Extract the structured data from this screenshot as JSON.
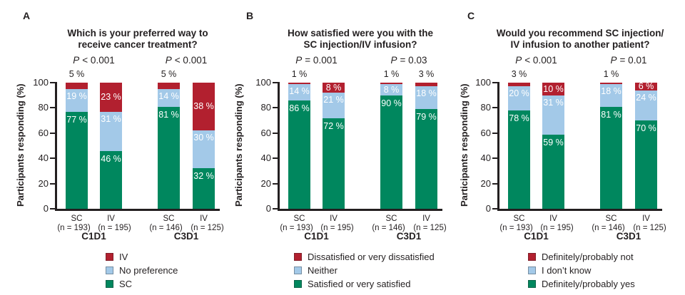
{
  "colors": {
    "green": "#00875E",
    "blue": "#A3C9E8",
    "red": "#B2202F",
    "text": "#231F20",
    "inbar_label": "#FFFFFF"
  },
  "chart_data": [
    {
      "type": "bar",
      "stacked": true,
      "panel_letter": "A",
      "title_lines": [
        "Which is your preferred way to",
        "receive cancer treatment?"
      ],
      "ylabel": "Participants responding (%)",
      "ylim": [
        0,
        100
      ],
      "yticks": [
        0,
        20,
        40,
        60,
        80,
        100
      ],
      "legend": [
        {
          "color_key": "red",
          "label": "IV"
        },
        {
          "color_key": "blue",
          "label": "No preference"
        },
        {
          "color_key": "green",
          "label": "SC"
        }
      ],
      "groups": [
        {
          "label": "C1D1",
          "p": {
            "symbol": "P",
            "comparison": "< 0.001"
          },
          "bars": [
            {
              "arm": "SC",
              "n_label": "(n = 193)",
              "segments": [
                {
                  "series": "SC",
                  "color_key": "green",
                  "value": 77,
                  "label": "77 %",
                  "label_position": "inside"
                },
                {
                  "series": "No preference",
                  "color_key": "blue",
                  "value": 19,
                  "label": "19 %",
                  "label_position": "inside"
                },
                {
                  "series": "IV",
                  "color_key": "red",
                  "value": 5,
                  "label": "5 %",
                  "label_position": "above"
                }
              ]
            },
            {
              "arm": "IV",
              "n_label": "(n = 195)",
              "segments": [
                {
                  "series": "SC",
                  "color_key": "green",
                  "value": 46,
                  "label": "46 %",
                  "label_position": "inside"
                },
                {
                  "series": "No preference",
                  "color_key": "blue",
                  "value": 31,
                  "label": "31 %",
                  "label_position": "inside"
                },
                {
                  "series": "IV",
                  "color_key": "red",
                  "value": 23,
                  "label": "23 %",
                  "label_position": "inside"
                }
              ]
            }
          ]
        },
        {
          "label": "C3D1",
          "p": {
            "symbol": "P",
            "comparison": "< 0.001"
          },
          "bars": [
            {
              "arm": "SC",
              "n_label": "(n = 146)",
              "segments": [
                {
                  "series": "SC",
                  "color_key": "green",
                  "value": 81,
                  "label": "81 %",
                  "label_position": "inside"
                },
                {
                  "series": "No preference",
                  "color_key": "blue",
                  "value": 14,
                  "label": "14 %",
                  "label_position": "inside"
                },
                {
                  "series": "IV",
                  "color_key": "red",
                  "value": 5,
                  "label": "5 %",
                  "label_position": "above"
                }
              ]
            },
            {
              "arm": "IV",
              "n_label": "(n = 125)",
              "segments": [
                {
                  "series": "SC",
                  "color_key": "green",
                  "value": 32,
                  "label": "32 %",
                  "label_position": "inside"
                },
                {
                  "series": "No preference",
                  "color_key": "blue",
                  "value": 30,
                  "label": "30 %",
                  "label_position": "inside"
                },
                {
                  "series": "IV",
                  "color_key": "red",
                  "value": 38,
                  "label": "38 %",
                  "label_position": "inside"
                }
              ]
            }
          ]
        }
      ]
    },
    {
      "type": "bar",
      "stacked": true,
      "panel_letter": "B",
      "title_lines": [
        "How satisfied were you with the",
        "SC injection/IV infusion?"
      ],
      "ylabel": "Participants responding (%)",
      "ylim": [
        0,
        100
      ],
      "yticks": [
        0,
        20,
        40,
        60,
        80,
        100
      ],
      "legend": [
        {
          "color_key": "red",
          "label": "Dissatisfied or very dissatisfied"
        },
        {
          "color_key": "blue",
          "label": "Neither"
        },
        {
          "color_key": "green",
          "label": "Satisfied or very satisfied"
        }
      ],
      "groups": [
        {
          "label": "C1D1",
          "p": {
            "symbol": "P",
            "comparison": "= 0.001"
          },
          "bars": [
            {
              "arm": "SC",
              "n_label": "(n = 193)",
              "segments": [
                {
                  "series": "Satisfied or very satisfied",
                  "color_key": "green",
                  "value": 86,
                  "label": "86 %",
                  "label_position": "inside"
                },
                {
                  "series": "Neither",
                  "color_key": "blue",
                  "value": 14,
                  "label": "14 %",
                  "label_position": "inside"
                },
                {
                  "series": "Dissatisfied or very dissatisfied",
                  "color_key": "red",
                  "value": 1,
                  "label": "1 %",
                  "label_position": "above"
                }
              ]
            },
            {
              "arm": "IV",
              "n_label": "(n = 195)",
              "segments": [
                {
                  "series": "Satisfied or very satisfied",
                  "color_key": "green",
                  "value": 72,
                  "label": "72 %",
                  "label_position": "inside"
                },
                {
                  "series": "Neither",
                  "color_key": "blue",
                  "value": 21,
                  "label": "21 %",
                  "label_position": "inside"
                },
                {
                  "series": "Dissatisfied or very dissatisfied",
                  "color_key": "red",
                  "value": 8,
                  "label": "8 %",
                  "label_position": "inside"
                }
              ]
            }
          ]
        },
        {
          "label": "C3D1",
          "p": {
            "symbol": "P",
            "comparison": "= 0.03"
          },
          "bars": [
            {
              "arm": "SC",
              "n_label": "(n = 146)",
              "segments": [
                {
                  "series": "Satisfied or very satisfied",
                  "color_key": "green",
                  "value": 90,
                  "label": "90 %",
                  "label_position": "inside"
                },
                {
                  "series": "Neither",
                  "color_key": "blue",
                  "value": 8,
                  "label": "8 %",
                  "label_position": "inside"
                },
                {
                  "series": "Dissatisfied or very dissatisfied",
                  "color_key": "red",
                  "value": 1,
                  "label": "1 %",
                  "label_position": "above"
                }
              ]
            },
            {
              "arm": "IV",
              "n_label": "(n = 125)",
              "segments": [
                {
                  "series": "Satisfied or very satisfied",
                  "color_key": "green",
                  "value": 79,
                  "label": "79 %",
                  "label_position": "inside"
                },
                {
                  "series": "Neither",
                  "color_key": "blue",
                  "value": 18,
                  "label": "18 %",
                  "label_position": "inside"
                },
                {
                  "series": "Dissatisfied or very dissatisfied",
                  "color_key": "red",
                  "value": 3,
                  "label": "3 %",
                  "label_position": "above"
                }
              ]
            }
          ]
        }
      ]
    },
    {
      "type": "bar",
      "stacked": true,
      "panel_letter": "C",
      "title_lines": [
        "Would you recommend SC injection/",
        "IV infusion to another patient?"
      ],
      "ylabel": "Participants responding (%)",
      "ylim": [
        0,
        100
      ],
      "yticks": [
        0,
        20,
        40,
        60,
        80,
        100
      ],
      "legend": [
        {
          "color_key": "red",
          "label": "Definitely/probably not"
        },
        {
          "color_key": "blue",
          "label": "I don’t know"
        },
        {
          "color_key": "green",
          "label": "Definitely/probably yes"
        }
      ],
      "groups": [
        {
          "label": "C1D1",
          "p": {
            "symbol": "P",
            "comparison": "< 0.001"
          },
          "bars": [
            {
              "arm": "SC",
              "n_label": "(n = 193)",
              "segments": [
                {
                  "series": "Definitely/probably yes",
                  "color_key": "green",
                  "value": 78,
                  "label": "78 %",
                  "label_position": "inside"
                },
                {
                  "series": "I don’t know",
                  "color_key": "blue",
                  "value": 20,
                  "label": "20 %",
                  "label_position": "inside"
                },
                {
                  "series": "Definitely/probably not",
                  "color_key": "red",
                  "value": 3,
                  "label": "3 %",
                  "label_position": "above"
                }
              ]
            },
            {
              "arm": "IV",
              "n_label": "(n = 195)",
              "segments": [
                {
                  "series": "Definitely/probably yes",
                  "color_key": "green",
                  "value": 59,
                  "label": "59 %",
                  "label_position": "inside"
                },
                {
                  "series": "I don’t know",
                  "color_key": "blue",
                  "value": 31,
                  "label": "31 %",
                  "label_position": "inside"
                },
                {
                  "series": "Definitely/probably not",
                  "color_key": "red",
                  "value": 10,
                  "label": "10 %",
                  "label_position": "inside"
                }
              ]
            }
          ]
        },
        {
          "label": "C3D1",
          "p": {
            "symbol": "P",
            "comparison": "= 0.01"
          },
          "bars": [
            {
              "arm": "SC",
              "n_label": "(n = 146)",
              "segments": [
                {
                  "series": "Definitely/probably yes",
                  "color_key": "green",
                  "value": 81,
                  "label": "81 %",
                  "label_position": "inside"
                },
                {
                  "series": "I don’t know",
                  "color_key": "blue",
                  "value": 18,
                  "label": "18 %",
                  "label_position": "inside"
                },
                {
                  "series": "Definitely/probably not",
                  "color_key": "red",
                  "value": 1,
                  "label": "1 %",
                  "label_position": "above"
                }
              ]
            },
            {
              "arm": "IV",
              "n_label": "(n = 125)",
              "segments": [
                {
                  "series": "Definitely/probably yes",
                  "color_key": "green",
                  "value": 70,
                  "label": "70 %",
                  "label_position": "inside"
                },
                {
                  "series": "I don’t know",
                  "color_key": "blue",
                  "value": 24,
                  "label": "24 %",
                  "label_position": "inside"
                },
                {
                  "series": "Definitely/probably not",
                  "color_key": "red",
                  "value": 6,
                  "label": "6 %",
                  "label_position": "inside"
                }
              ]
            }
          ]
        }
      ]
    }
  ]
}
